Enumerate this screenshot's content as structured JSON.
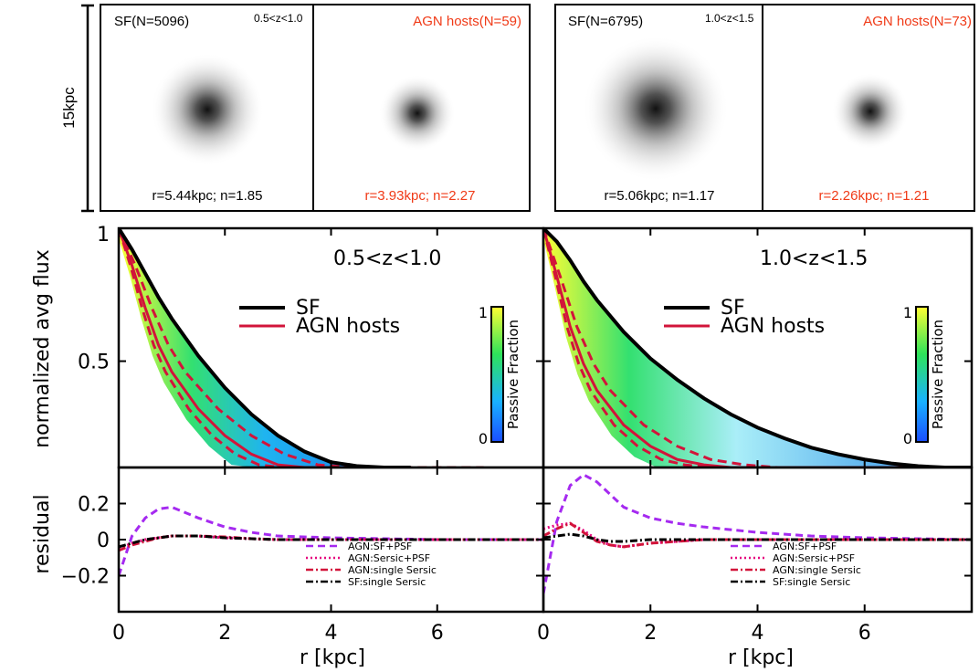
{
  "stamps": [
    {
      "label": "SF(N=5096)",
      "zrange": "0.5<z<1.0",
      "params": "r=5.44kpc; n=1.85",
      "color": "#000000"
    },
    {
      "label": "AGN hosts(N=59)",
      "zrange": "",
      "params": "r=3.93kpc; n=2.27",
      "color": "#f03a17"
    },
    {
      "label": "SF(N=6795)",
      "zrange": "1.0<z<1.5",
      "params": "r=5.06kpc; n=1.17",
      "color": "#000000"
    },
    {
      "label": "AGN hosts(N=73)",
      "zrange": "",
      "params": "r=2.26kpc; n=1.21",
      "color": "#f03a17"
    }
  ],
  "scale_bar_label": "15kpc",
  "colors": {
    "sf": "#000000",
    "agn": "#d2143a",
    "sf_psf": "#a52af0",
    "sersic_psf": "#e6007e",
    "agn_single": "#d2143a",
    "sf_single": "#000000"
  },
  "shared": {
    "xlabel": "r [kpc]",
    "ylabel_top": "normalized avg flux",
    "ylabel_bottom": "residual",
    "colorbar_label": "Passive Fraction",
    "colorbar_ticks": [
      "0",
      "1"
    ],
    "x_ticks": [
      "0",
      "2",
      "4",
      "6"
    ],
    "y_ticks_top": [
      "1",
      "0.5"
    ],
    "y_ticks_bottom": [
      "0.2",
      "0",
      "−0.2"
    ]
  },
  "chart_data": [
    {
      "type": "line",
      "title": "0.5<z<1.0",
      "xlabel": "r [kpc]",
      "ylabel": "normalized avg flux",
      "xlim": [
        0,
        8
      ],
      "ylim": [
        0.1,
        1.0
      ],
      "legend": [
        "SF",
        "AGN hosts"
      ],
      "x": [
        0,
        0.25,
        0.5,
        0.75,
        1,
        1.5,
        2,
        2.5,
        3,
        3.5,
        4,
        4.5,
        5,
        5.5
      ],
      "series": [
        {
          "name": "SF",
          "values": [
            1.0,
            0.92,
            0.83,
            0.74,
            0.66,
            0.52,
            0.4,
            0.3,
            0.22,
            0.16,
            0.12,
            0.105,
            0.1,
            0.1
          ]
        },
        {
          "name": "AGN hosts",
          "values": [
            1.0,
            0.86,
            0.7,
            0.56,
            0.46,
            0.32,
            0.22,
            0.15,
            0.11,
            0.1,
            0.1,
            0.1,
            0.1,
            0.1
          ]
        }
      ]
    },
    {
      "type": "line",
      "title": "1.0<z<1.5",
      "xlabel": "r [kpc]",
      "ylabel": "normalized avg flux",
      "xlim": [
        0,
        8
      ],
      "ylim": [
        0.1,
        1.0
      ],
      "legend": [
        "SF",
        "AGN hosts"
      ],
      "x": [
        0,
        0.25,
        0.5,
        0.75,
        1,
        1.5,
        2,
        2.5,
        3,
        3.5,
        4,
        4.5,
        5,
        5.5,
        6,
        6.5,
        7,
        7.5,
        8
      ],
      "series": [
        {
          "name": "SF",
          "values": [
            1.0,
            0.95,
            0.88,
            0.8,
            0.73,
            0.61,
            0.51,
            0.43,
            0.36,
            0.3,
            0.25,
            0.21,
            0.175,
            0.15,
            0.13,
            0.115,
            0.105,
            0.1,
            0.1
          ]
        },
        {
          "name": "AGN hosts",
          "values": [
            1.0,
            0.82,
            0.63,
            0.49,
            0.39,
            0.26,
            0.18,
            0.13,
            0.11,
            0.1,
            0.1,
            0.1,
            0.1,
            0.1,
            0.1,
            0.1,
            0.1,
            0.1,
            0.1
          ]
        }
      ]
    },
    {
      "type": "line",
      "title": "",
      "xlabel": "r [kpc]",
      "ylabel": "residual",
      "xlim": [
        0,
        8
      ],
      "ylim": [
        -0.4,
        0.4
      ],
      "legend": [
        "AGN:SF+PSF",
        "AGN:Sersic+PSF",
        "AGN:single Sersic",
        "SF:single Sersic"
      ],
      "x": [
        0,
        0.25,
        0.5,
        0.75,
        1,
        1.5,
        2,
        2.5,
        3,
        4,
        5,
        6,
        7,
        8
      ],
      "series": [
        {
          "name": "AGN:SF+PSF",
          "values": [
            -0.2,
            0.02,
            0.12,
            0.17,
            0.18,
            0.12,
            0.07,
            0.04,
            0.02,
            0.01,
            0.005,
            0.0,
            0.0,
            0.0
          ]
        },
        {
          "name": "AGN:Sersic+PSF",
          "values": [
            -0.05,
            -0.02,
            0.0,
            0.01,
            0.02,
            0.02,
            0.01,
            0.005,
            0.0,
            0.0,
            0.0,
            0.0,
            0.0,
            0.0
          ]
        },
        {
          "name": "AGN:single Sersic",
          "values": [
            -0.06,
            -0.03,
            -0.01,
            0.01,
            0.02,
            0.02,
            0.015,
            0.005,
            0.0,
            0.0,
            0.0,
            0.0,
            0.0,
            0.0
          ]
        },
        {
          "name": "SF:single Sersic",
          "values": [
            -0.04,
            -0.02,
            0.0,
            0.01,
            0.02,
            0.02,
            0.01,
            0.005,
            0.0,
            0.0,
            0.0,
            0.0,
            0.0,
            0.0
          ]
        }
      ]
    },
    {
      "type": "line",
      "title": "",
      "xlabel": "r [kpc]",
      "ylabel": "residual",
      "xlim": [
        0,
        8
      ],
      "ylim": [
        -0.4,
        0.4
      ],
      "legend": [
        "AGN:SF+PSF",
        "AGN:Sersic+PSF",
        "AGN:single Sersic",
        "SF:single Sersic"
      ],
      "x": [
        0,
        0.25,
        0.5,
        0.75,
        1,
        1.25,
        1.5,
        2,
        2.5,
        3,
        4,
        5,
        6,
        7,
        8
      ],
      "series": [
        {
          "name": "AGN:SF+PSF",
          "values": [
            -0.3,
            0.1,
            0.3,
            0.36,
            0.32,
            0.25,
            0.18,
            0.12,
            0.09,
            0.07,
            0.04,
            0.02,
            0.01,
            0.005,
            0.0
          ]
        },
        {
          "name": "AGN:Sersic+PSF",
          "values": [
            0.06,
            0.08,
            0.09,
            0.05,
            0.0,
            -0.03,
            -0.04,
            -0.02,
            -0.01,
            0.0,
            0.0,
            0.0,
            0.0,
            0.0,
            0.0
          ]
        },
        {
          "name": "AGN:single Sersic",
          "values": [
            0.02,
            0.06,
            0.09,
            0.04,
            -0.01,
            -0.03,
            -0.04,
            -0.02,
            -0.01,
            0.0,
            0.0,
            0.0,
            0.0,
            0.0,
            0.0
          ]
        },
        {
          "name": "SF:single Sersic",
          "values": [
            0.01,
            0.02,
            0.03,
            0.02,
            0.0,
            -0.01,
            -0.01,
            0.0,
            0.0,
            0.0,
            0.0,
            0.0,
            0.0,
            0.0,
            0.0
          ]
        }
      ]
    }
  ]
}
